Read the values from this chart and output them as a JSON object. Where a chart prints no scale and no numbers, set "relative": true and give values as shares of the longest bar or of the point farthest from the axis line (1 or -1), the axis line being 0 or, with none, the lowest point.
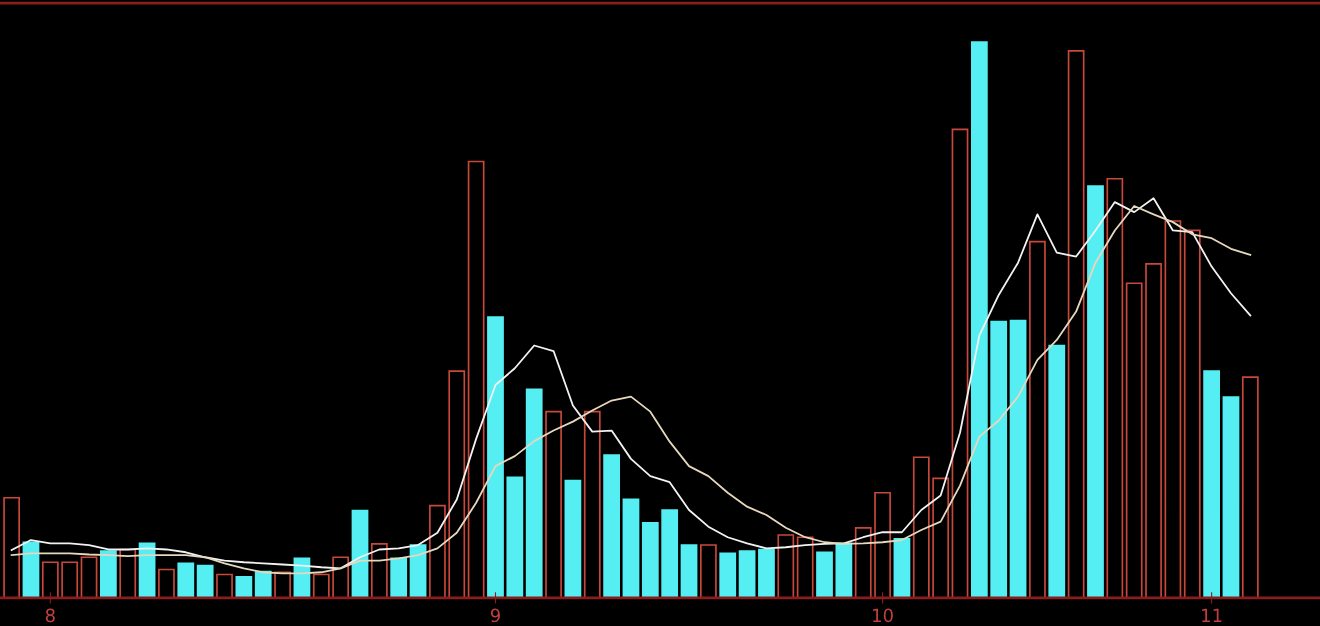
{
  "chart_data": {
    "type": "bar",
    "relative": true,
    "categories": [
      null,
      null,
      "8",
      null,
      null,
      null,
      null,
      null,
      null,
      null,
      null,
      null,
      null,
      null,
      null,
      null,
      null,
      null,
      null,
      null,
      null,
      null,
      null,
      null,
      null,
      "9",
      null,
      null,
      null,
      null,
      null,
      null,
      null,
      null,
      null,
      null,
      null,
      null,
      null,
      null,
      null,
      null,
      null,
      null,
      null,
      "10",
      null,
      null,
      null,
      null,
      null,
      null,
      null,
      null,
      null,
      null,
      null,
      null,
      null,
      null,
      null,
      null,
      "11",
      null,
      null
    ],
    "series": [
      {
        "color": "#c8483c",
        "values": [
          0.18,
          null,
          0.064,
          0.064,
          0.073,
          null,
          0.087,
          null,
          0.051,
          null,
          null,
          0.042,
          null,
          null,
          0.046,
          null,
          0.042,
          0.073,
          null,
          0.097,
          null,
          null,
          0.166,
          0.408,
          0.785,
          null,
          null,
          null,
          0.335,
          null,
          0.335,
          null,
          null,
          null,
          null,
          null,
          0.095,
          null,
          null,
          null,
          0.113,
          0.109,
          null,
          null,
          0.126,
          0.189,
          null,
          0.253,
          0.215,
          0.843,
          null,
          null,
          null,
          0.641,
          null,
          0.984,
          null,
          0.754,
          0.566,
          0.601,
          0.678,
          0.661,
          null,
          null,
          0.397
        ]
      },
      {
        "color": "#55eef2",
        "values": [
          null,
          0.1,
          null,
          null,
          null,
          0.084,
          null,
          0.098,
          null,
          0.062,
          0.058,
          null,
          0.038,
          0.047,
          null,
          0.071,
          null,
          null,
          0.157,
          null,
          0.071,
          0.095,
          null,
          null,
          null,
          0.505,
          0.217,
          0.375,
          null,
          0.211,
          null,
          0.257,
          0.177,
          0.135,
          0.158,
          0.095,
          null,
          0.08,
          0.084,
          0.087,
          null,
          null,
          0.082,
          0.098,
          null,
          null,
          0.106,
          null,
          null,
          null,
          1,
          0.497,
          0.499,
          null,
          0.454,
          null,
          0.741,
          null,
          null,
          null,
          null,
          null,
          0.408,
          0.361,
          null
        ]
      },
      {
        "type": "line",
        "color": "#f2f2f2",
        "values": [
          0.086,
          0.104,
          0.098,
          0.098,
          0.095,
          0.087,
          0.087,
          0.089,
          0.087,
          0.082,
          0.073,
          0.067,
          0.064,
          0.062,
          0.06,
          0.058,
          0.055,
          0.053,
          0.073,
          0.087,
          0.089,
          0.095,
          0.117,
          0.177,
          0.286,
          0.383,
          0.413,
          0.454,
          0.444,
          0.346,
          0.299,
          0.301,
          0.25,
          0.219,
          0.208,
          0.158,
          0.128,
          0.109,
          0.098,
          0.089,
          0.091,
          0.095,
          0.097,
          0.098,
          0.109,
          0.118,
          0.118,
          0.158,
          0.184,
          0.297,
          0.472,
          0.545,
          0.603,
          0.69,
          0.621,
          0.614,
          0.661,
          0.712,
          0.694,
          0.719,
          0.661,
          0.658,
          0.596,
          0.548,
          0.508
        ]
      },
      {
        "type": "line",
        "color": "#e6d8bc",
        "values": [
          0.077,
          0.08,
          0.08,
          0.08,
          0.078,
          0.077,
          0.075,
          0.077,
          0.077,
          0.077,
          0.073,
          0.062,
          0.053,
          0.046,
          0.044,
          0.044,
          0.046,
          0.053,
          0.067,
          0.067,
          0.071,
          0.077,
          0.089,
          0.117,
          0.171,
          0.237,
          0.255,
          0.282,
          0.301,
          0.317,
          0.337,
          0.355,
          0.362,
          0.335,
          0.281,
          0.237,
          0.219,
          0.189,
          0.164,
          0.149,
          0.126,
          0.109,
          0.1,
          0.097,
          0.098,
          0.1,
          0.104,
          0.122,
          0.137,
          0.202,
          0.29,
          0.319,
          0.362,
          0.428,
          0.464,
          0.515,
          0.603,
          0.661,
          0.705,
          0.69,
          0.676,
          0.654,
          0.647,
          0.628,
          0.617
        ]
      }
    ]
  }
}
